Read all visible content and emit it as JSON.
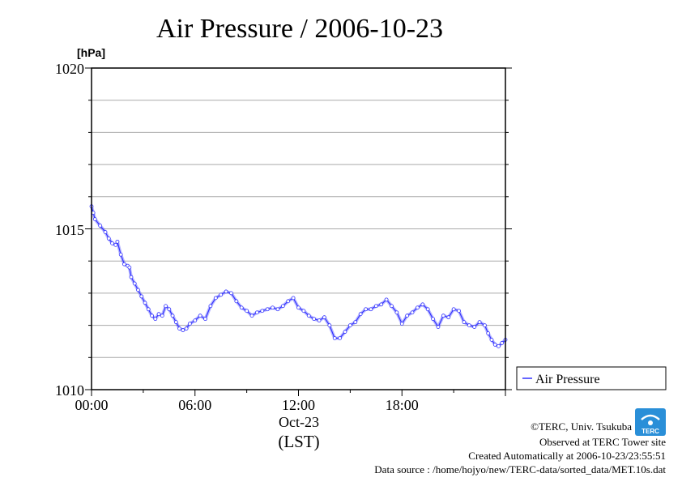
{
  "title": "Air Pressure / 2006-10-23",
  "chart_data": {
    "type": "line",
    "title": "Air Pressure / 2006-10-23",
    "ylabel": "[hPa]",
    "xlabel": "(LST)",
    "date_label": "Oct-23",
    "ylim": [
      1010,
      1020
    ],
    "y_ticks": [
      "1020",
      "1015",
      "1010"
    ],
    "x_ticks": [
      "00:00",
      "06:00",
      "12:00",
      "18:00"
    ],
    "x_tick_hours": [
      0,
      6,
      12,
      18
    ],
    "xlim_hours": [
      0,
      24
    ],
    "grid": true,
    "legend_position": "right",
    "series": [
      {
        "name": "Air Pressure",
        "color": "#3333ff",
        "x_hours": [
          0,
          0.1,
          0.2,
          0.5,
          0.8,
          1.0,
          1.2,
          1.4,
          1.5,
          1.7,
          1.9,
          2.1,
          2.2,
          2.3,
          2.5,
          2.7,
          2.9,
          3.1,
          3.3,
          3.5,
          3.7,
          3.9,
          4.1,
          4.3,
          4.5,
          4.7,
          4.9,
          5.1,
          5.3,
          5.5,
          5.7,
          6.0,
          6.3,
          6.6,
          6.9,
          7.2,
          7.5,
          7.8,
          8.1,
          8.4,
          8.7,
          9.0,
          9.3,
          9.6,
          9.9,
          10.2,
          10.5,
          10.8,
          11.1,
          11.4,
          11.7,
          12.0,
          12.3,
          12.6,
          12.9,
          13.2,
          13.5,
          13.8,
          14.1,
          14.4,
          14.7,
          15.0,
          15.3,
          15.6,
          15.9,
          16.2,
          16.5,
          16.8,
          17.1,
          17.4,
          17.7,
          18.0,
          18.3,
          18.6,
          18.9,
          19.2,
          19.5,
          19.8,
          20.1,
          20.4,
          20.7,
          21.0,
          21.3,
          21.6,
          21.9,
          22.2,
          22.5,
          22.8,
          23.0,
          23.2,
          23.4,
          23.6,
          23.8,
          24.0
        ],
        "values": [
          1015.7,
          1015.5,
          1015.3,
          1015.1,
          1014.9,
          1014.7,
          1014.55,
          1014.5,
          1014.6,
          1014.2,
          1013.9,
          1013.85,
          1013.8,
          1013.5,
          1013.3,
          1013.1,
          1012.9,
          1012.7,
          1012.5,
          1012.3,
          1012.2,
          1012.35,
          1012.3,
          1012.6,
          1012.5,
          1012.3,
          1012.1,
          1011.9,
          1011.85,
          1011.9,
          1012.05,
          1012.15,
          1012.3,
          1012.2,
          1012.6,
          1012.85,
          1012.95,
          1013.05,
          1013.0,
          1012.75,
          1012.55,
          1012.45,
          1012.3,
          1012.4,
          1012.45,
          1012.5,
          1012.55,
          1012.5,
          1012.6,
          1012.75,
          1012.85,
          1012.55,
          1012.45,
          1012.3,
          1012.2,
          1012.15,
          1012.25,
          1012.0,
          1011.6,
          1011.6,
          1011.8,
          1012.0,
          1012.1,
          1012.35,
          1012.5,
          1012.5,
          1012.6,
          1012.65,
          1012.8,
          1012.6,
          1012.4,
          1012.05,
          1012.3,
          1012.4,
          1012.55,
          1012.65,
          1012.5,
          1012.2,
          1011.95,
          1012.3,
          1012.25,
          1012.5,
          1012.45,
          1012.1,
          1012.0,
          1011.95,
          1012.1,
          1012.0,
          1011.75,
          1011.55,
          1011.4,
          1011.35,
          1011.45,
          1011.55
        ]
      }
    ]
  },
  "footer": {
    "copyright": "©TERC, Univ. Tsukuba",
    "observed": "Observed at TERC Tower site",
    "created": "Created Automatically at 2006-10-23/23:55:51",
    "source": "Data source : /home/hojyo/new/TERC-data/sorted_data/MET.10s.dat"
  },
  "logo": {
    "text": "TERC",
    "color": "#2a8fd8"
  }
}
